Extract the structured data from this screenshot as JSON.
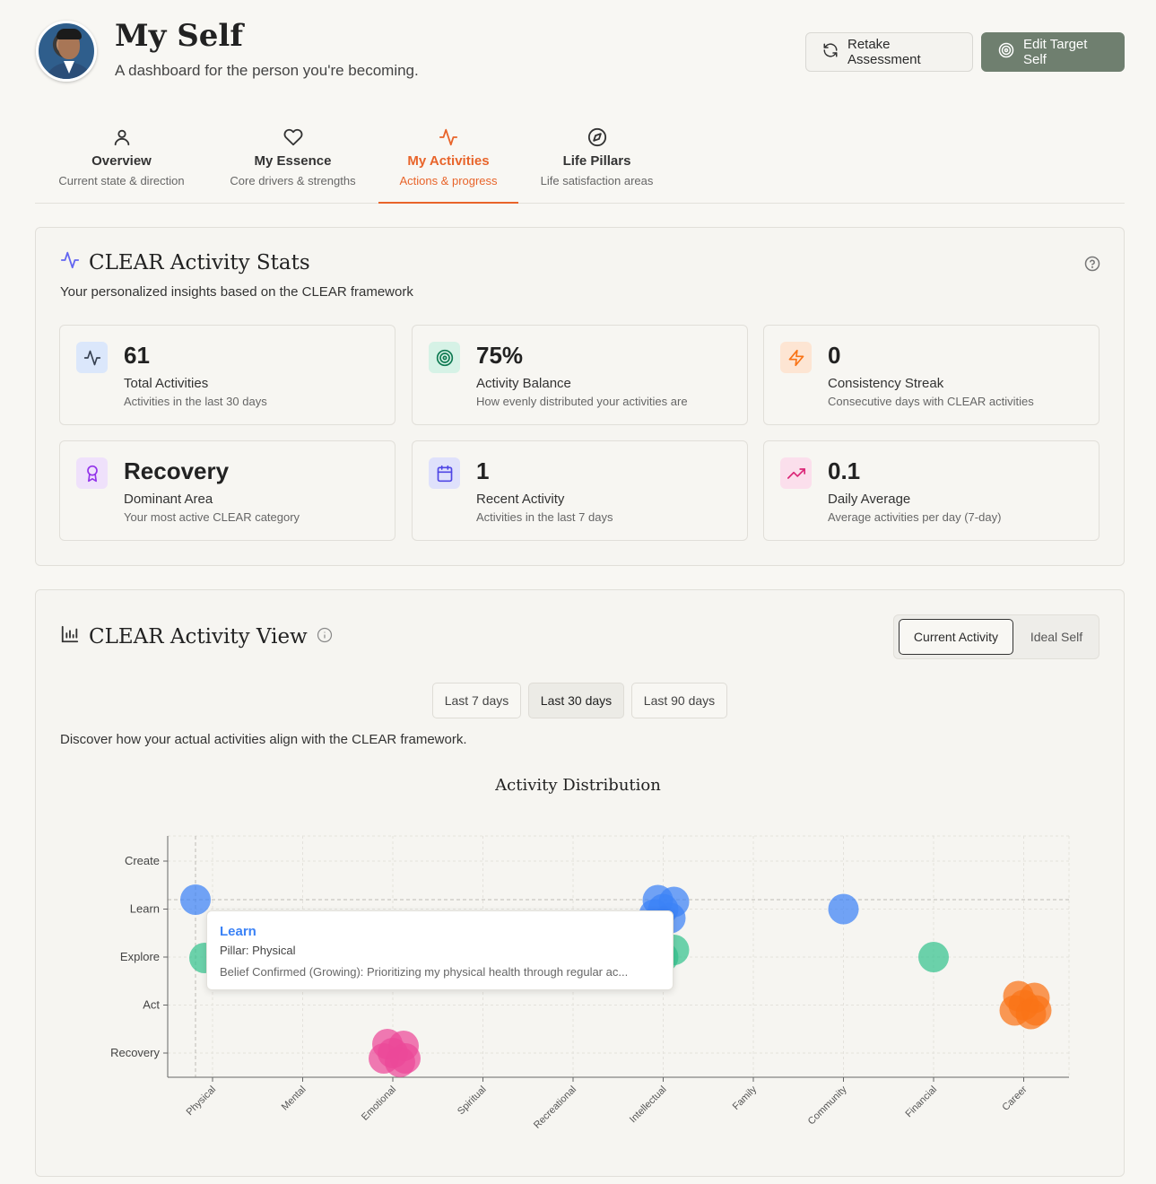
{
  "header": {
    "title": "My Self",
    "subtitle": "A dashboard for the person you're becoming.",
    "retake_label": "Retake Assessment",
    "edit_label": "Edit Target Self"
  },
  "tabs": [
    {
      "label": "Overview",
      "desc": "Current state & direction",
      "icon": "user-icon"
    },
    {
      "label": "My Essence",
      "desc": "Core drivers & strengths",
      "icon": "heart-icon"
    },
    {
      "label": "My Activities",
      "desc": "Actions & progress",
      "icon": "activity-icon",
      "active": true
    },
    {
      "label": "Life Pillars",
      "desc": "Life satisfaction areas",
      "icon": "compass-icon"
    }
  ],
  "stats_panel": {
    "title": "CLEAR Activity Stats",
    "subtitle": "Your personalized insights based on the CLEAR framework",
    "cards": [
      {
        "value": "61",
        "name": "Total Activities",
        "desc": "Activities in the last 30 days",
        "icon": "activity-icon",
        "color": "#3b82f6",
        "bg": "#dbe7fb"
      },
      {
        "value": "75%",
        "name": "Activity Balance",
        "desc": "How evenly distributed your activities are",
        "icon": "target-icon",
        "color": "#10a36d",
        "bg": "#d6f2e6"
      },
      {
        "value": "0",
        "name": "Consistency Streak",
        "desc": "Consecutive days with CLEAR activities",
        "icon": "zap-icon",
        "color": "#f97316",
        "bg": "#fde5d3"
      },
      {
        "value": "Recovery",
        "name": "Dominant Area",
        "desc": "Your most active CLEAR category",
        "icon": "award-icon",
        "color": "#9333ea",
        "bg": "#efe1fb"
      },
      {
        "value": "1",
        "name": "Recent Activity",
        "desc": "Activities in the last 7 days",
        "icon": "calendar-icon",
        "color": "#4f46e5",
        "bg": "#dfe1fb"
      },
      {
        "value": "0.1",
        "name": "Daily Average",
        "desc": "Average activities per day (7-day)",
        "icon": "trending-up-icon",
        "color": "#db2777",
        "bg": "#fbdfec"
      }
    ]
  },
  "view_panel": {
    "title": "CLEAR Activity View",
    "toggle": [
      "Current Activity",
      "Ideal Self"
    ],
    "ranges": [
      "Last 7 days",
      "Last 30 days",
      "Last 90 days"
    ],
    "selected_range": "Last 30 days",
    "description": "Discover how your actual activities align with the CLEAR framework."
  },
  "tooltip": {
    "title": "Learn",
    "pillar": "Pillar: Physical",
    "desc": "Belief Confirmed (Growing): Prioritizing my physical health through regular ac..."
  },
  "chart_data": {
    "type": "scatter",
    "title": "Activity Distribution",
    "x_categories": [
      "Physical",
      "Mental",
      "Emotional",
      "Spiritual",
      "Recreational",
      "Intellectual",
      "Family",
      "Community",
      "Financial",
      "Career"
    ],
    "y_categories": [
      "Recovery",
      "Act",
      "Explore",
      "Learn",
      "Create"
    ],
    "colors": {
      "Learn": "#3b82f6",
      "Explore": "#34c38f",
      "Act": "#f97316",
      "Recovery": "#ec4899"
    },
    "points": [
      {
        "x": "Physical",
        "y": "Learn"
      },
      {
        "x": "Physical",
        "y": "Explore"
      },
      {
        "x": "Emotional",
        "y": "Recovery"
      },
      {
        "x": "Emotional",
        "y": "Recovery"
      },
      {
        "x": "Emotional",
        "y": "Recovery"
      },
      {
        "x": "Emotional",
        "y": "Recovery"
      },
      {
        "x": "Emotional",
        "y": "Recovery"
      },
      {
        "x": "Emotional",
        "y": "Recovery"
      },
      {
        "x": "Intellectual",
        "y": "Learn"
      },
      {
        "x": "Intellectual",
        "y": "Learn"
      },
      {
        "x": "Intellectual",
        "y": "Learn"
      },
      {
        "x": "Intellectual",
        "y": "Learn"
      },
      {
        "x": "Intellectual",
        "y": "Learn"
      },
      {
        "x": "Intellectual",
        "y": "Explore"
      },
      {
        "x": "Intellectual",
        "y": "Explore"
      },
      {
        "x": "Community",
        "y": "Learn"
      },
      {
        "x": "Financial",
        "y": "Explore"
      },
      {
        "x": "Career",
        "y": "Act"
      },
      {
        "x": "Career",
        "y": "Act"
      },
      {
        "x": "Career",
        "y": "Act"
      },
      {
        "x": "Career",
        "y": "Act"
      },
      {
        "x": "Career",
        "y": "Act"
      },
      {
        "x": "Career",
        "y": "Act"
      }
    ]
  }
}
